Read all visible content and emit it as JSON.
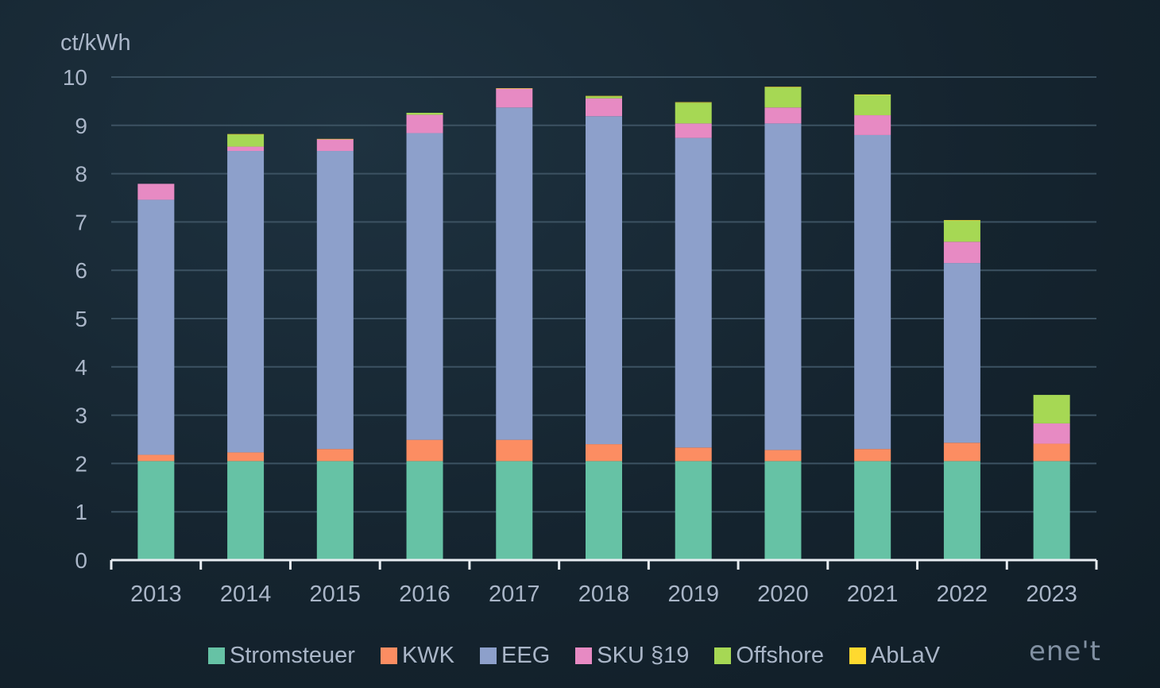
{
  "chart_data": {
    "type": "bar",
    "stacked": true,
    "ylabel": "ct/kWh",
    "ylim": [
      0,
      10
    ],
    "yticks": [
      0,
      1,
      2,
      3,
      4,
      5,
      6,
      7,
      8,
      9,
      10
    ],
    "grid": true,
    "legend_position": "bottom",
    "categories": [
      "2013",
      "2014",
      "2015",
      "2016",
      "2017",
      "2018",
      "2019",
      "2020",
      "2021",
      "2022",
      "2023"
    ],
    "series": [
      {
        "name": "Stromsteuer",
        "color": "#66c2a5",
        "values": [
          2.05,
          2.05,
          2.05,
          2.05,
          2.05,
          2.05,
          2.05,
          2.05,
          2.05,
          2.05,
          2.05
        ]
      },
      {
        "name": "KWK",
        "color": "#fc8d62",
        "values": [
          0.13,
          0.18,
          0.25,
          0.44,
          0.44,
          0.35,
          0.28,
          0.23,
          0.25,
          0.38,
          0.36
        ]
      },
      {
        "name": "EEG",
        "color": "#8da0cb",
        "values": [
          5.28,
          6.24,
          6.17,
          6.35,
          6.88,
          6.79,
          6.41,
          6.76,
          6.5,
          3.72,
          0.0
        ]
      },
      {
        "name": "SKU §19",
        "color": "#e78ac3",
        "values": [
          0.33,
          0.09,
          0.24,
          0.38,
          0.39,
          0.37,
          0.3,
          0.33,
          0.41,
          0.44,
          0.42
        ]
      },
      {
        "name": "Offshore",
        "color": "#a6d854",
        "values": [
          0.0,
          0.25,
          0.0,
          0.04,
          0.0,
          0.04,
          0.43,
          0.42,
          0.42,
          0.44,
          0.59
        ]
      },
      {
        "name": "AbLaV",
        "color": "#ffd92f",
        "values": [
          0.0,
          0.01,
          0.01,
          0.0,
          0.01,
          0.01,
          0.01,
          0.01,
          0.01,
          0.01,
          0.0
        ]
      }
    ]
  },
  "logo_text": "ene't"
}
